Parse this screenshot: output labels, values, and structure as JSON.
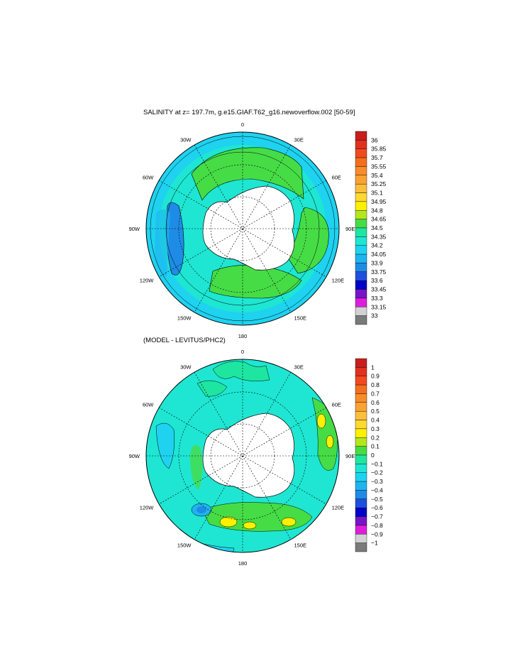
{
  "chart_data": [
    {
      "type": "heatmap",
      "projection": "south-polar-stereographic",
      "title": "SALINITY at z= 197.7m, g.e15.GIAF.T62_g16.newoverflow.002 [50-59]",
      "longitude_labels": [
        "0",
        "30E",
        "60E",
        "90E",
        "120E",
        "150E",
        "180",
        "150W",
        "120W",
        "90W",
        "60W",
        "30W"
      ],
      "colorbar": {
        "labels": [
          "36",
          "35.85",
          "35.7",
          "35.55",
          "35.4",
          "35.25",
          "35.1",
          "34.95",
          "34.8",
          "34.65",
          "34.5",
          "34.35",
          "34.2",
          "34.05",
          "33.9",
          "33.75",
          "33.6",
          "33.45",
          "33.3",
          "33.15",
          "33"
        ],
        "colors": [
          "#c81e1e",
          "#e0301e",
          "#f04a1e",
          "#f56e1e",
          "#f88c2a",
          "#fba234",
          "#fdbe3c",
          "#ffd832",
          "#fff000",
          "#b4e61e",
          "#46dc46",
          "#1ee6a0",
          "#1ee6d2",
          "#1ed2f0",
          "#1eb4f0",
          "#1e8ce6",
          "#1e50dc",
          "#0000c8",
          "#7814c8",
          "#dc1edc",
          "#d2d2d2",
          "#7a7a7a"
        ]
      }
    },
    {
      "type": "heatmap",
      "projection": "south-polar-stereographic",
      "title": "(MODEL - LEVITUS/PHC2)",
      "longitude_labels": [
        "0",
        "30E",
        "60E",
        "90E",
        "120E",
        "150E",
        "180",
        "150W",
        "120W",
        "90W",
        "60W",
        "30W"
      ],
      "colorbar": {
        "labels": [
          "1",
          "0.9",
          "0.8",
          "0.7",
          "0.6",
          "0.5",
          "0.4",
          "0.3",
          "0.2",
          "0.1",
          "0",
          "−0.1",
          "−0.2",
          "−0.3",
          "−0.4",
          "−0.5",
          "−0.6",
          "−0.7",
          "−0.8",
          "−0.9",
          "−1"
        ],
        "colors": [
          "#c81e1e",
          "#e0301e",
          "#f04a1e",
          "#f56e1e",
          "#f88c2a",
          "#fba234",
          "#fdbe3c",
          "#ffd832",
          "#fff000",
          "#b4e61e",
          "#46dc46",
          "#1ee6a0",
          "#1ee6d2",
          "#1ed2f0",
          "#1eb4f0",
          "#1e8ce6",
          "#1e50dc",
          "#0000c8",
          "#7814c8",
          "#dc1edc",
          "#d2d2d2",
          "#7a7a7a"
        ]
      }
    }
  ]
}
